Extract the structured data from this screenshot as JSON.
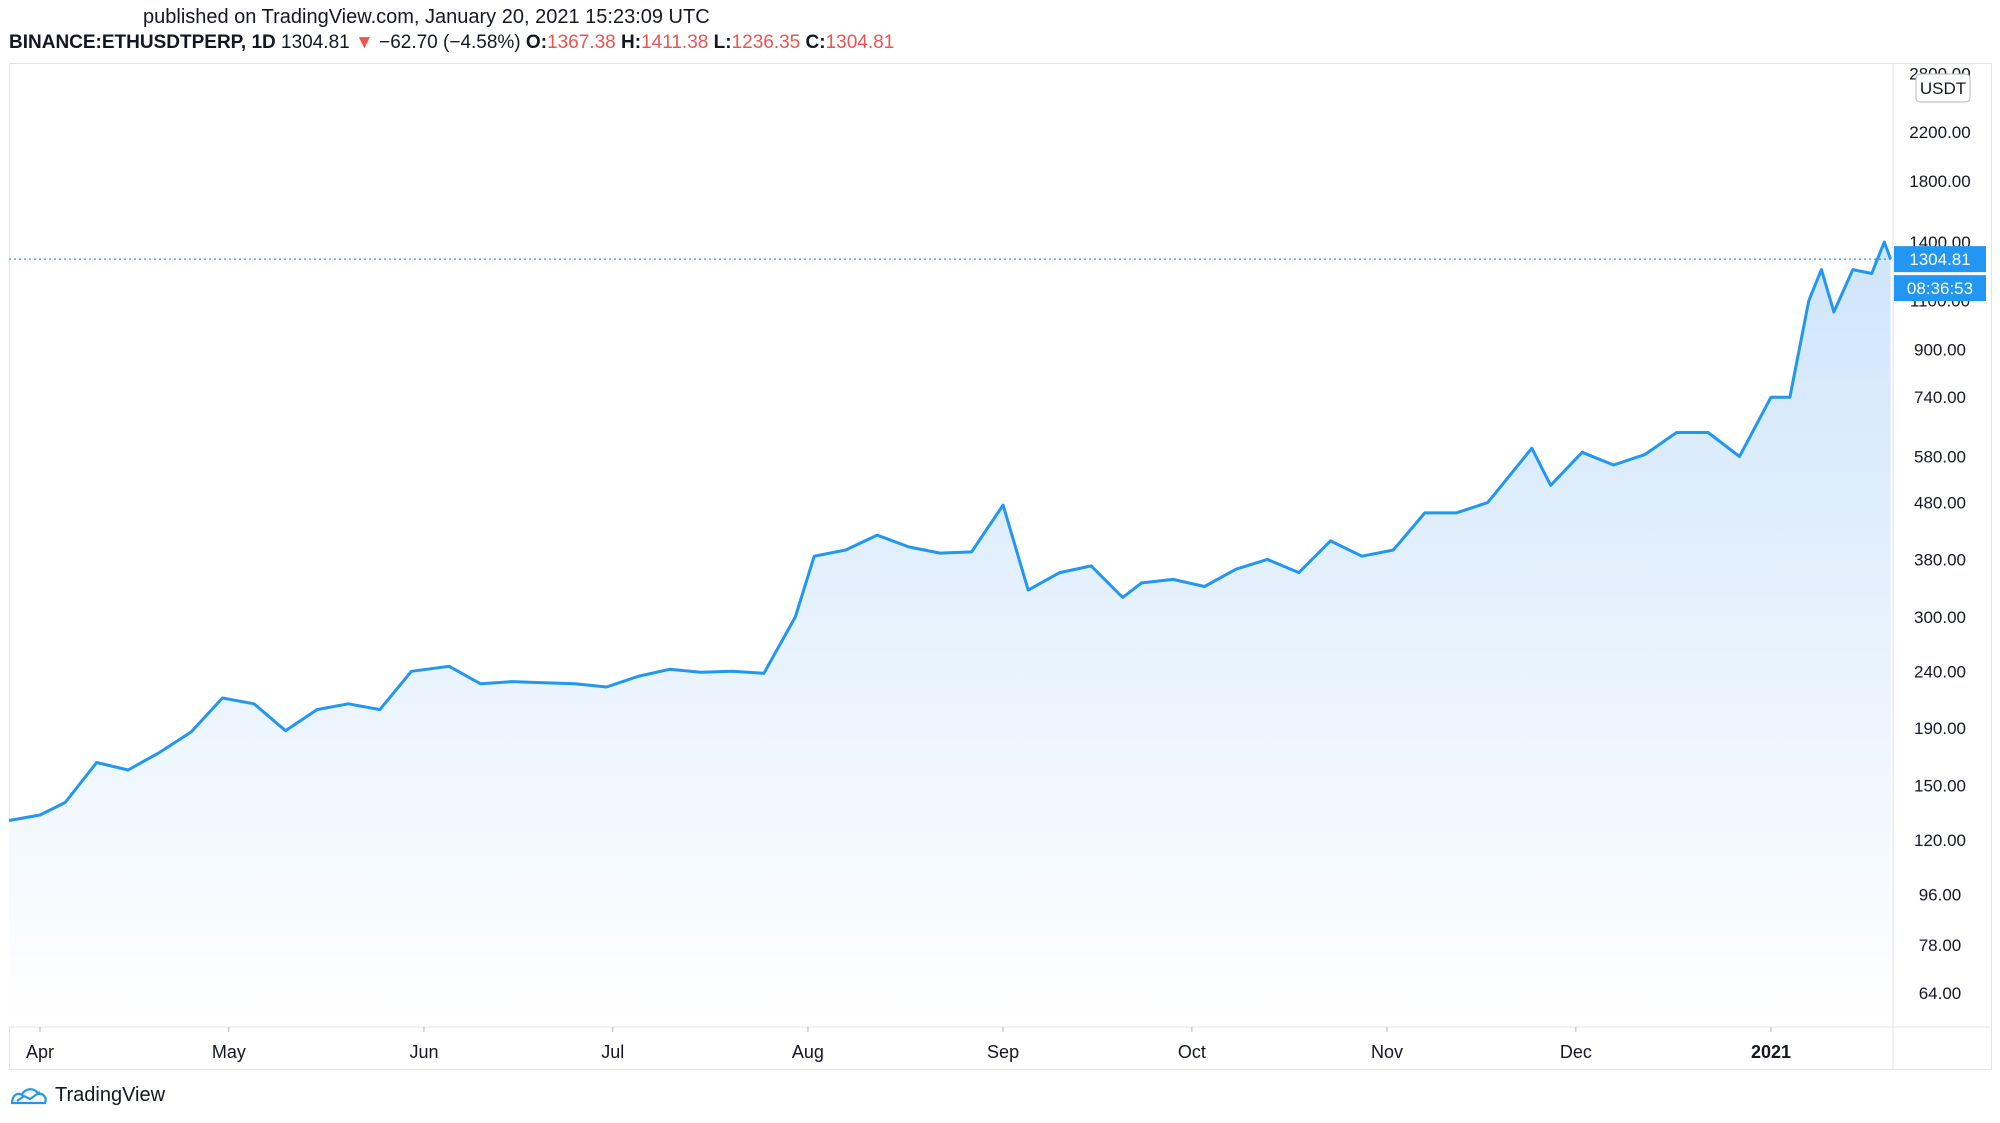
{
  "header": {
    "published": "published on TradingView.com, January 20, 2021 15:23:09 UTC",
    "symbol": "BINANCE:ETHUSDTPERP, 1D",
    "last": "1304.81",
    "change_arrow": "▼",
    "change": "−62.70 (−4.58%)",
    "open_label": "O:",
    "open": "1367.38",
    "high_label": "H:",
    "high": "1411.38",
    "low_label": "L:",
    "low": "1236.35",
    "close_label": "C:",
    "close": "1304.81"
  },
  "footer": {
    "brand": "TradingView",
    "logo_icon": "tradingview-logo-icon"
  },
  "colors": {
    "line": "#2196f3",
    "down": "#ef5350",
    "label_bg": "#2196f3",
    "fill_top": "#cfe5fb",
    "fill_bottom": "#ffffff"
  },
  "chart_data": {
    "type": "area",
    "scale": "log",
    "currency_label": "USDT",
    "last_value_label": "1304.81",
    "countdown_label": "08:36:53",
    "y_ticks": [
      "2800.00",
      "2200.00",
      "1800.00",
      "1400.00",
      "1100.00",
      "900.00",
      "740.00",
      "580.00",
      "480.00",
      "380.00",
      "300.00",
      "240.00",
      "190.00",
      "150.00",
      "120.00",
      "96.00",
      "78.00",
      "64.00"
    ],
    "x_ticks": [
      "Apr",
      "May",
      "Jun",
      "Jul",
      "Aug",
      "Sep",
      "Oct",
      "Nov",
      "Dec",
      "2021"
    ],
    "series": [
      {
        "x": [
          "2020-03-27",
          "2020-04-01",
          "2020-04-05",
          "2020-04-10",
          "2020-04-15",
          "2020-04-20",
          "2020-04-25",
          "2020-04-30",
          "2020-05-05",
          "2020-05-10",
          "2020-05-15",
          "2020-05-20",
          "2020-05-25",
          "2020-05-30",
          "2020-06-05",
          "2020-06-10",
          "2020-06-15",
          "2020-06-20",
          "2020-06-25",
          "2020-06-30",
          "2020-07-05",
          "2020-07-10",
          "2020-07-15",
          "2020-07-20",
          "2020-07-25",
          "2020-07-30",
          "2020-08-02",
          "2020-08-07",
          "2020-08-12",
          "2020-08-17",
          "2020-08-22",
          "2020-08-27",
          "2020-09-01",
          "2020-09-05",
          "2020-09-10",
          "2020-09-15",
          "2020-09-20",
          "2020-09-23",
          "2020-09-28",
          "2020-10-03",
          "2020-10-08",
          "2020-10-13",
          "2020-10-18",
          "2020-10-23",
          "2020-10-28",
          "2020-11-02",
          "2020-11-07",
          "2020-11-12",
          "2020-11-17",
          "2020-11-24",
          "2020-11-27",
          "2020-12-02",
          "2020-12-07",
          "2020-12-12",
          "2020-12-17",
          "2020-12-22",
          "2020-12-27",
          "2021-01-01",
          "2021-01-04",
          "2021-01-07",
          "2021-01-09",
          "2021-01-11",
          "2021-01-14",
          "2021-01-17",
          "2021-01-19",
          "2021-01-20"
        ],
        "values": [
          130,
          133,
          140,
          165,
          160,
          172,
          187,
          215,
          210,
          188,
          205,
          210,
          205,
          240,
          245,
          228,
          230,
          229,
          228,
          225,
          235,
          242,
          239,
          240,
          238,
          300,
          385,
          395,
          420,
          400,
          390,
          392,
          475,
          335,
          360,
          370,
          325,
          345,
          350,
          340,
          365,
          380,
          360,
          410,
          385,
          395,
          460,
          460,
          480,
          600,
          515,
          590,
          560,
          585,
          640,
          640,
          580,
          740,
          740,
          1100,
          1250,
          1050,
          1250,
          1230,
          1400,
          1304.81
        ]
      }
    ]
  }
}
